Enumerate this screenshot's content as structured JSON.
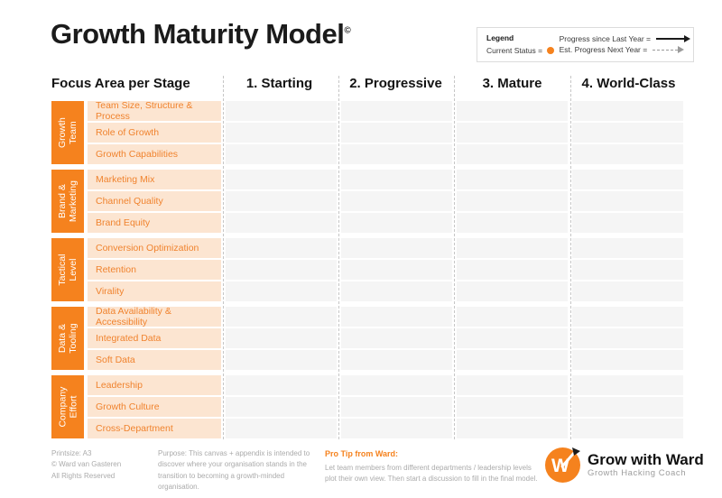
{
  "title": {
    "text": "Growth Maturity Model",
    "copyright": "©"
  },
  "legend": {
    "heading": "Legend",
    "current_status_label": "Current Status =",
    "progress_last_year_label": "Progress since Last Year =",
    "progress_next_year_label": "Est. Progress Next Year =",
    "status_dot_color": "#F5821E"
  },
  "table": {
    "focus_header": "Focus Area per Stage",
    "stage_headers": [
      "1. Starting",
      "2. Progressive",
      "3. Mature",
      "4. World-Class"
    ],
    "groups": [
      {
        "label": "Growth\nTeam",
        "rows": [
          "Team Size, Structure & Process",
          "Role of Growth",
          "Growth Capabilities"
        ]
      },
      {
        "label": "Brand &\nMarketing",
        "rows": [
          "Marketing Mix",
          "Channel Quality",
          "Brand Equity"
        ]
      },
      {
        "label": "Tactical\nLevel",
        "rows": [
          "Conversion Optimization",
          "Retention",
          "Virality"
        ]
      },
      {
        "label": "Data &\nTooling",
        "rows": [
          "Data Availability & Accessibility",
          "Integrated Data",
          "Soft Data"
        ]
      },
      {
        "label": "Company\nEffort",
        "rows": [
          "Leadership",
          "Growth Culture",
          "Cross-Department"
        ]
      }
    ],
    "stage_count": 4
  },
  "footer": {
    "print_info_lines": [
      "Printsize: A3",
      "© Ward van Gasteren",
      "All Rights Reserved"
    ],
    "purpose": "Purpose: This canvas + appendix is intended to discover where your organisation stands in the transition to becoming a growth-minded organisation.",
    "pro_tip_heading": "Pro Tip from Ward:",
    "pro_tip_text": "Let team members from different departments / leadership levels plot their own view. Then start a discussion to fill in the final model."
  },
  "logo": {
    "monogram": "W",
    "name": "Grow with Ward",
    "tagline": "Growth Hacking Coach"
  },
  "colors": {
    "accent_orange": "#F5821E",
    "row_bg": "#FCE5D1",
    "row_text": "#F0832E",
    "cell_bg": "#F5F5F5",
    "divider_dash": "#C6C6C6"
  }
}
